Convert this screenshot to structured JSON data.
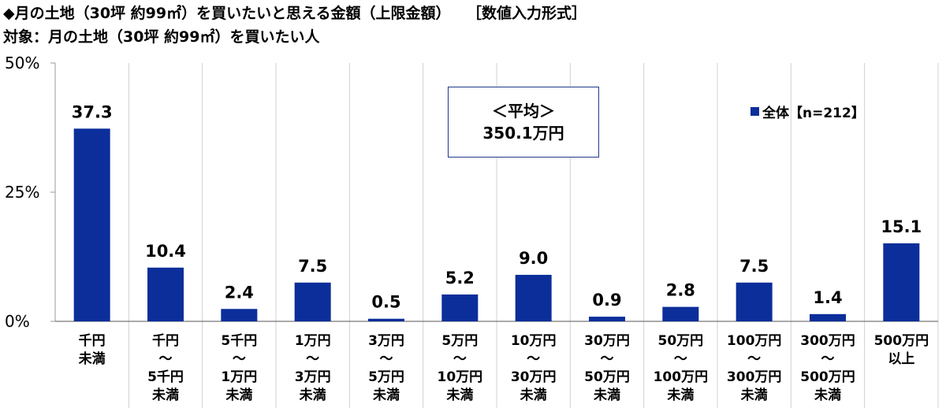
{
  "header": {
    "title": "◆月の土地（30坪 約99㎡）を買いたいと思える金額（上限金額）",
    "format": "［数値入力形式］",
    "subtitle": "対象：月の土地（30坪 約99㎡）を買いたい人"
  },
  "average_box": {
    "label": "＜平均＞",
    "value": "350.1万円"
  },
  "colors": {
    "bar": "#0b2e9a",
    "grid": "#d0d0d0",
    "box_border": "#1f3a8a"
  },
  "chart_data": {
    "type": "bar",
    "title": "◆月の土地（30坪 約99㎡）を買いたいと思える金額（上限金額）",
    "ylim": [
      0,
      50
    ],
    "yticks": [
      {
        "value": 0,
        "label": "0%"
      },
      {
        "value": 25,
        "label": "25%"
      },
      {
        "value": 50,
        "label": "50%"
      }
    ],
    "legend": {
      "label": "全体【n=212】",
      "position": "top-right"
    },
    "categories": [
      {
        "lines": [
          "千円",
          "未満"
        ]
      },
      {
        "lines": [
          "千円",
          "～",
          "5千円",
          "未満"
        ]
      },
      {
        "lines": [
          "5千円",
          "～",
          "1万円",
          "未満"
        ]
      },
      {
        "lines": [
          "1万円",
          "～",
          "3万円",
          "未満"
        ]
      },
      {
        "lines": [
          "3万円",
          "～",
          "5万円",
          "未満"
        ]
      },
      {
        "lines": [
          "5万円",
          "～",
          "10万円",
          "未満"
        ]
      },
      {
        "lines": [
          "10万円",
          "～",
          "30万円",
          "未満"
        ]
      },
      {
        "lines": [
          "30万円",
          "～",
          "50万円",
          "未満"
        ]
      },
      {
        "lines": [
          "50万円",
          "～",
          "100万円",
          "未満"
        ]
      },
      {
        "lines": [
          "100万円",
          "～",
          "300万円",
          "未満"
        ]
      },
      {
        "lines": [
          "300万円",
          "～",
          "500万円",
          "未満"
        ]
      },
      {
        "lines": [
          "500万円",
          "以上"
        ]
      }
    ],
    "series": [
      {
        "name": "全体【n=212】",
        "values": [
          37.3,
          10.4,
          2.4,
          7.5,
          0.5,
          5.2,
          9.0,
          0.9,
          2.8,
          7.5,
          1.4,
          15.1
        ],
        "labels": [
          "37.3",
          "10.4",
          "2.4",
          "7.5",
          "0.5",
          "5.2",
          "9.0",
          "0.9",
          "2.8",
          "7.5",
          "1.4",
          "15.1"
        ]
      }
    ]
  }
}
